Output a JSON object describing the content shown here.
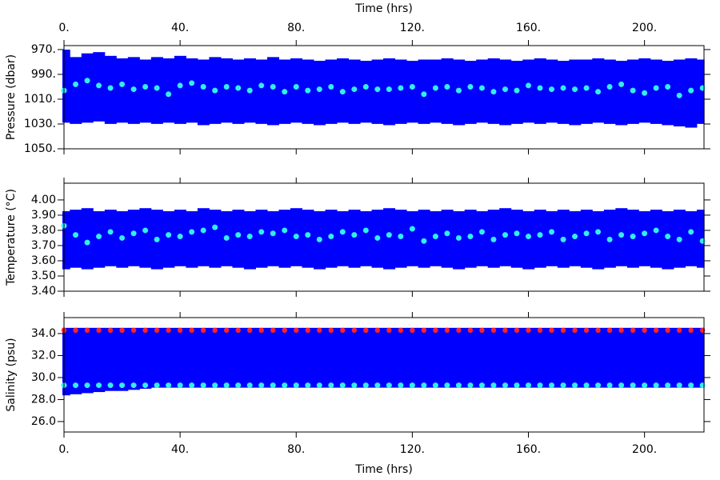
{
  "chart_data": [
    {
      "type": "band",
      "ylabel": "Pressure (dbar)",
      "xlabel": "Time (hrs)",
      "xaxis_side": "top",
      "y_inverted": true,
      "xlim": [
        0,
        220.5
      ],
      "ylim": [
        966.8,
        1050
      ],
      "xticks": [
        {
          "value": 0,
          "label": "0."
        },
        {
          "value": 40,
          "label": "40."
        },
        {
          "value": 80,
          "label": "80."
        },
        {
          "value": 120,
          "label": "120."
        },
        {
          "value": 160,
          "label": "160."
        },
        {
          "value": 200,
          "label": "200."
        }
      ],
      "yticks": [
        {
          "value": 970,
          "label": "970."
        },
        {
          "value": 990,
          "label": "990."
        },
        {
          "value": 1010,
          "label": "1010."
        },
        {
          "value": 1030,
          "label": "1030."
        },
        {
          "value": 1050,
          "label": "1050."
        }
      ],
      "x": [
        0,
        4,
        8,
        12,
        16,
        20,
        24,
        28,
        32,
        36,
        40,
        44,
        48,
        52,
        56,
        60,
        64,
        68,
        72,
        76,
        80,
        84,
        88,
        92,
        96,
        100,
        104,
        108,
        112,
        116,
        120,
        124,
        128,
        132,
        136,
        140,
        144,
        148,
        152,
        156,
        160,
        164,
        168,
        172,
        176,
        180,
        184,
        188,
        192,
        196,
        200,
        204,
        208,
        212,
        216,
        220
      ],
      "low": [
        972,
        978,
        975,
        974,
        977,
        979,
        978,
        980,
        978,
        979,
        977,
        979,
        980,
        978,
        979,
        980,
        979,
        980,
        978,
        980,
        979,
        980,
        981,
        980,
        979,
        980,
        981,
        980,
        979,
        980,
        981,
        980,
        980,
        979,
        980,
        981,
        980,
        979,
        980,
        981,
        980,
        979,
        980,
        981,
        980,
        980,
        979,
        980,
        981,
        980,
        979,
        980,
        981,
        980,
        979,
        980
      ],
      "high": [
        1027,
        1028,
        1027,
        1026,
        1028,
        1027,
        1028,
        1027,
        1028,
        1027,
        1028,
        1027,
        1029,
        1028,
        1027,
        1028,
        1027,
        1028,
        1029,
        1028,
        1027,
        1028,
        1029,
        1028,
        1027,
        1028,
        1027,
        1028,
        1029,
        1028,
        1027,
        1028,
        1027,
        1028,
        1029,
        1028,
        1027,
        1028,
        1029,
        1028,
        1027,
        1028,
        1027,
        1028,
        1029,
        1028,
        1027,
        1028,
        1029,
        1028,
        1027,
        1028,
        1029,
        1030,
        1031,
        1028
      ],
      "values": [
        1003,
        998,
        995,
        999,
        1001,
        998,
        1002,
        1000,
        1001,
        1006,
        999,
        997,
        1000,
        1003,
        1000,
        1001,
        1003,
        999,
        1000,
        1004,
        1000,
        1003,
        1002,
        1000,
        1004,
        1002,
        1000,
        1002,
        1002,
        1001,
        1000,
        1006,
        1001,
        1000,
        1003,
        1000,
        1001,
        1004,
        1002,
        1003,
        999,
        1001,
        1002,
        1001,
        1002,
        1001,
        1004,
        1000,
        998,
        1003,
        1005,
        1001,
        1000,
        1007,
        1003,
        1001
      ],
      "color": "#0000ff",
      "value_color": "#33eeee"
    },
    {
      "type": "band",
      "ylabel": "Temperature (°C)",
      "xlim": [
        0,
        220.5
      ],
      "ylim": [
        3.4,
        4.11
      ],
      "xticks": [
        0,
        40,
        80,
        120,
        160,
        200
      ],
      "yticks": [
        {
          "value": 3.4,
          "label": "3.40"
        },
        {
          "value": 3.5,
          "label": "3.50"
        },
        {
          "value": 3.6,
          "label": "3.60"
        },
        {
          "value": 3.7,
          "label": "3.70"
        },
        {
          "value": 3.8,
          "label": "3.80"
        },
        {
          "value": 3.9,
          "label": "3.90"
        },
        {
          "value": 4.0,
          "label": "4.00"
        }
      ],
      "x": [
        0,
        4,
        8,
        12,
        16,
        20,
        24,
        28,
        32,
        36,
        40,
        44,
        48,
        52,
        56,
        60,
        64,
        68,
        72,
        76,
        80,
        84,
        88,
        92,
        96,
        100,
        104,
        108,
        112,
        116,
        120,
        124,
        128,
        132,
        136,
        140,
        144,
        148,
        152,
        156,
        160,
        164,
        168,
        172,
        176,
        180,
        184,
        188,
        192,
        196,
        200,
        204,
        208,
        212,
        216,
        220
      ],
      "low": [
        3.56,
        3.57,
        3.56,
        3.57,
        3.58,
        3.57,
        3.58,
        3.57,
        3.56,
        3.57,
        3.58,
        3.57,
        3.58,
        3.57,
        3.58,
        3.57,
        3.56,
        3.57,
        3.58,
        3.57,
        3.58,
        3.57,
        3.56,
        3.57,
        3.58,
        3.57,
        3.58,
        3.57,
        3.56,
        3.57,
        3.58,
        3.57,
        3.58,
        3.57,
        3.56,
        3.57,
        3.58,
        3.57,
        3.58,
        3.57,
        3.56,
        3.57,
        3.58,
        3.57,
        3.58,
        3.57,
        3.56,
        3.57,
        3.58,
        3.57,
        3.58,
        3.57,
        3.56,
        3.57,
        3.58,
        3.57
      ],
      "high": [
        3.91,
        3.92,
        3.93,
        3.91,
        3.92,
        3.91,
        3.92,
        3.93,
        3.92,
        3.91,
        3.92,
        3.91,
        3.93,
        3.92,
        3.91,
        3.92,
        3.91,
        3.92,
        3.91,
        3.92,
        3.93,
        3.92,
        3.91,
        3.92,
        3.91,
        3.92,
        3.91,
        3.92,
        3.93,
        3.92,
        3.91,
        3.92,
        3.91,
        3.92,
        3.91,
        3.92,
        3.91,
        3.92,
        3.93,
        3.92,
        3.91,
        3.92,
        3.91,
        3.92,
        3.91,
        3.92,
        3.91,
        3.92,
        3.93,
        3.92,
        3.91,
        3.92,
        3.91,
        3.92,
        3.91,
        3.92
      ],
      "values": [
        3.83,
        3.77,
        3.72,
        3.76,
        3.79,
        3.75,
        3.78,
        3.8,
        3.74,
        3.77,
        3.76,
        3.79,
        3.8,
        3.82,
        3.75,
        3.77,
        3.76,
        3.79,
        3.78,
        3.8,
        3.76,
        3.77,
        3.74,
        3.76,
        3.79,
        3.77,
        3.8,
        3.75,
        3.77,
        3.76,
        3.81,
        3.73,
        3.76,
        3.78,
        3.75,
        3.76,
        3.79,
        3.74,
        3.77,
        3.78,
        3.76,
        3.77,
        3.79,
        3.74,
        3.76,
        3.78,
        3.79,
        3.74,
        3.77,
        3.76,
        3.78,
        3.8,
        3.76,
        3.74,
        3.79,
        3.73
      ],
      "color": "#0000ff",
      "value_color": "#33eeee"
    },
    {
      "type": "band",
      "ylabel": "Salinity (psu)",
      "xlabel": "Time (hrs)",
      "xaxis_side": "bottom",
      "xlim": [
        0,
        220.5
      ],
      "ylim": [
        25.05,
        35.45
      ],
      "xticks": [
        {
          "value": 0,
          "label": "0."
        },
        {
          "value": 40,
          "label": "40."
        },
        {
          "value": 80,
          "label": "80."
        },
        {
          "value": 120,
          "label": "120."
        },
        {
          "value": 160,
          "label": "160."
        },
        {
          "value": 200,
          "label": "200."
        }
      ],
      "yticks": [
        {
          "value": 26,
          "label": "26.0"
        },
        {
          "value": 28,
          "label": "28.0"
        },
        {
          "value": 30,
          "label": "30.0"
        },
        {
          "value": 32,
          "label": "32.0"
        },
        {
          "value": 34,
          "label": "34.0"
        }
      ],
      "x": [
        0,
        4,
        8,
        12,
        16,
        20,
        24,
        28,
        32,
        36,
        40,
        44,
        48,
        52,
        56,
        60,
        64,
        68,
        72,
        76,
        80,
        84,
        88,
        92,
        96,
        100,
        104,
        108,
        112,
        116,
        120,
        124,
        128,
        132,
        136,
        140,
        144,
        148,
        152,
        156,
        160,
        164,
        168,
        172,
        176,
        180,
        184,
        188,
        192,
        196,
        200,
        204,
        208,
        212,
        216,
        220
      ],
      "low": [
        28.6,
        28.7,
        28.8,
        28.9,
        29.0,
        29.0,
        29.1,
        29.2,
        29.3,
        29.3,
        29.3,
        29.3,
        29.3,
        29.3,
        29.3,
        29.3,
        29.3,
        29.3,
        29.3,
        29.3,
        29.3,
        29.3,
        29.3,
        29.3,
        29.3,
        29.3,
        29.3,
        29.3,
        29.3,
        29.3,
        29.3,
        29.3,
        29.3,
        29.3,
        29.3,
        29.3,
        29.3,
        29.3,
        29.3,
        29.3,
        29.3,
        29.3,
        29.3,
        29.3,
        29.3,
        29.3,
        29.3,
        29.3,
        29.3,
        29.3,
        29.3,
        29.3,
        29.3,
        29.3,
        29.3,
        29.3
      ],
      "high": [
        34.3,
        34.3,
        34.3,
        34.3,
        34.3,
        34.3,
        34.3,
        34.3,
        34.3,
        34.3,
        34.3,
        34.3,
        34.3,
        34.3,
        34.3,
        34.3,
        34.3,
        34.3,
        34.3,
        34.3,
        34.3,
        34.3,
        34.3,
        34.3,
        34.3,
        34.3,
        34.3,
        34.3,
        34.3,
        34.3,
        34.3,
        34.3,
        34.3,
        34.3,
        34.3,
        34.3,
        34.3,
        34.3,
        34.3,
        34.3,
        34.3,
        34.3,
        34.3,
        34.3,
        34.3,
        34.3,
        34.3,
        34.3,
        34.3,
        34.3,
        34.3,
        34.3,
        34.3,
        34.3,
        34.3,
        34.3
      ],
      "values": [
        29.3,
        29.3,
        29.3,
        29.3,
        29.3,
        29.3,
        29.3,
        29.3,
        29.3,
        29.3,
        29.3,
        29.3,
        29.3,
        29.3,
        29.3,
        29.3,
        29.3,
        29.3,
        29.3,
        29.3,
        29.3,
        29.3,
        29.3,
        29.3,
        29.3,
        29.3,
        29.3,
        29.3,
        29.3,
        29.3,
        29.3,
        29.3,
        29.3,
        29.3,
        29.3,
        29.3,
        29.3,
        29.3,
        29.3,
        29.3,
        29.3,
        29.3,
        29.3,
        29.3,
        29.3,
        29.3,
        29.3,
        29.3,
        29.3,
        29.3,
        29.3,
        29.3,
        29.3,
        29.3,
        29.3,
        29.3
      ],
      "edge_values": [
        34.3,
        34.3,
        34.3,
        34.3,
        34.3,
        34.3,
        34.3,
        34.3,
        34.3,
        34.3,
        34.3,
        34.3,
        34.3,
        34.3,
        34.3,
        34.3,
        34.3,
        34.3,
        34.3,
        34.3,
        34.3,
        34.3,
        34.3,
        34.3,
        34.3,
        34.3,
        34.3,
        34.3,
        34.3,
        34.3,
        34.3,
        34.3,
        34.3,
        34.3,
        34.3,
        34.3,
        34.3,
        34.3,
        34.3,
        34.3,
        34.3,
        34.3,
        34.3,
        34.3,
        34.3,
        34.3,
        34.3,
        34.3,
        34.3,
        34.3,
        34.3,
        34.3,
        34.3,
        34.3,
        34.3,
        34.3
      ],
      "color": "#0000ff",
      "value_color": "#33eeee",
      "edge_color": "#ff2222"
    }
  ]
}
